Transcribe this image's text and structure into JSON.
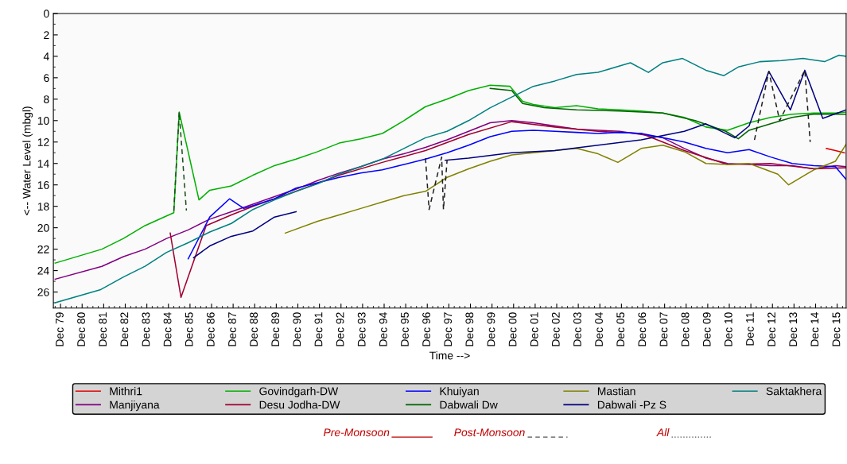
{
  "chart_data": {
    "type": "line",
    "xlabel": "Time -->",
    "ylabel": "<-- Water Level (mbgl)",
    "xlim": [
      "1979-08",
      "2016-05"
    ],
    "ylim": [
      27.5,
      0
    ],
    "yticks": [
      0,
      2,
      4,
      6,
      8,
      10,
      12,
      14,
      16,
      18,
      20,
      22,
      24,
      26
    ],
    "xticks": [
      {
        "value": "1979-12",
        "label": "Dec 79"
      },
      {
        "value": "1980-12",
        "label": "Dec 80"
      },
      {
        "value": "1981-12",
        "label": "Dec 81"
      },
      {
        "value": "1982-12",
        "label": "Dec 82"
      },
      {
        "value": "1983-12",
        "label": "Dec 83"
      },
      {
        "value": "1984-12",
        "label": "Dec 84"
      },
      {
        "value": "1985-12",
        "label": "Dec 85"
      },
      {
        "value": "1986-12",
        "label": "Dec 86"
      },
      {
        "value": "1987-12",
        "label": "Dec 87"
      },
      {
        "value": "1988-12",
        "label": "Dec 88"
      },
      {
        "value": "1989-12",
        "label": "Dec 89"
      },
      {
        "value": "1990-12",
        "label": "Dec 90"
      },
      {
        "value": "1991-12",
        "label": "Dec 91"
      },
      {
        "value": "1992-12",
        "label": "Dec 92"
      },
      {
        "value": "1993-12",
        "label": "Dec 93"
      },
      {
        "value": "1994-12",
        "label": "Dec 94"
      },
      {
        "value": "1995-12",
        "label": "Dec 95"
      },
      {
        "value": "1996-12",
        "label": "Dec 96"
      },
      {
        "value": "1997-12",
        "label": "Dec 97"
      },
      {
        "value": "1998-12",
        "label": "Dec 98"
      },
      {
        "value": "1999-12",
        "label": "Dec 99"
      },
      {
        "value": "2000-12",
        "label": "Dec 00"
      },
      {
        "value": "2001-12",
        "label": "Dec 01"
      },
      {
        "value": "2002-12",
        "label": "Dec 02"
      },
      {
        "value": "2003-12",
        "label": "Dec 03"
      },
      {
        "value": "2004-12",
        "label": "Dec 04"
      },
      {
        "value": "2005-12",
        "label": "Dec 05"
      },
      {
        "value": "2006-12",
        "label": "Dec 06"
      },
      {
        "value": "2007-12",
        "label": "Dec 07"
      },
      {
        "value": "2008-12",
        "label": "Dec 08"
      },
      {
        "value": "2009-12",
        "label": "Dec 09"
      },
      {
        "value": "2010-12",
        "label": "Dec 10"
      },
      {
        "value": "2011-12",
        "label": "Dec 11"
      },
      {
        "value": "2012-12",
        "label": "Dec 12"
      },
      {
        "value": "2013-12",
        "label": "Dec 13"
      },
      {
        "value": "2014-12",
        "label": "Dec 14"
      },
      {
        "value": "2015-12",
        "label": "Dec 15"
      }
    ],
    "grid": false,
    "legend": "bottom",
    "marker": "none",
    "series": [
      {
        "name": "Mithri1",
        "color": "#e00000",
        "x": [
          "2015-06",
          "2015-11",
          "2016-04"
        ],
        "values": [
          12.6,
          12.8,
          13.0
        ]
      },
      {
        "name": "Manjiyana",
        "color": "#800080",
        "x": [
          "1979-09",
          "1981-11",
          "1982-11",
          "1983-11",
          "1984-11",
          "1985-11",
          "1986-11",
          "1987-11",
          "1988-11",
          "1989-11",
          "1990-11",
          "1991-11",
          "1992-11",
          "1993-11",
          "1994-11",
          "1995-11",
          "1996-11",
          "1997-11",
          "1998-11",
          "1999-11",
          "2000-11",
          "2001-11",
          "2002-11",
          "2003-11",
          "2004-11",
          "2005-11",
          "2006-11",
          "2007-11",
          "2008-11",
          "2009-11",
          "2010-11",
          "2011-11",
          "2012-11",
          "2013-11",
          "2014-11",
          "2015-11",
          "2016-05"
        ],
        "values": [
          24.8,
          23.6,
          22.7,
          22.0,
          21.0,
          20.2,
          19.2,
          18.5,
          17.8,
          17.1,
          16.4,
          15.6,
          14.9,
          14.3,
          13.6,
          13.1,
          12.5,
          11.8,
          11.0,
          10.2,
          10.0,
          10.2,
          10.5,
          10.8,
          10.9,
          11.0,
          11.3,
          11.6,
          12.6,
          13.5,
          14.0,
          14.1,
          14.2,
          14.2,
          14.5,
          14.2,
          14.3
        ]
      },
      {
        "name": "Govindgarh-DW",
        "color": "#00b000",
        "x": [
          "1979-09",
          "1981-11",
          "1982-11",
          "1983-11",
          "1984-11",
          "1985-03",
          "1985-06",
          "1986-05",
          "1986-11",
          "1987-11",
          "1988-11",
          "1989-11",
          "1990-11",
          "1991-11",
          "1992-11",
          "1993-11",
          "1994-11",
          "1995-11",
          "1996-11",
          "1997-11",
          "1998-11",
          "1999-11",
          "2000-10",
          "2001-05",
          "2001-11",
          "2002-11",
          "2003-11",
          "2004-11",
          "2005-11",
          "2006-11",
          "2007-11",
          "2008-11",
          "2009-11",
          "2010-11",
          "2011-11",
          "2012-11",
          "2013-11",
          "2014-11",
          "2015-11",
          "2016-05"
        ],
        "values": [
          23.3,
          22.0,
          21.0,
          19.8,
          18.9,
          18.6,
          9.2,
          17.4,
          16.5,
          16.1,
          15.1,
          14.2,
          13.6,
          12.9,
          12.1,
          11.7,
          11.2,
          10.0,
          8.7,
          8.0,
          7.2,
          6.7,
          6.8,
          8.2,
          8.5,
          8.8,
          8.6,
          8.9,
          9.0,
          9.1,
          9.3,
          9.7,
          10.6,
          10.9,
          10.2,
          9.7,
          9.4,
          9.3,
          9.3,
          9.2
        ]
      },
      {
        "name": "Desu Jodha-DW",
        "color": "#a00030",
        "x": [
          "1985-01",
          "1985-07",
          "1986-09",
          "1987-11",
          "1988-11",
          "1990-11",
          "1992-11",
          "1994-11",
          "1996-11",
          "1998-11",
          "2000-11",
          "2002-11",
          "2004-11",
          "2006-11",
          "2008-11",
          "2010-11",
          "2012-11",
          "2014-11",
          "2016-05"
        ],
        "values": [
          20.5,
          26.5,
          19.8,
          18.8,
          18.0,
          16.6,
          15.1,
          13.9,
          12.8,
          11.3,
          10.1,
          10.6,
          11.0,
          11.2,
          12.8,
          14.1,
          14.0,
          14.5,
          14.4
        ]
      },
      {
        "name": "Khuiyan",
        "color": "#0000ff",
        "x": [
          "1985-11",
          "1986-11",
          "1987-10",
          "1988-06",
          "1989-11",
          "1990-11",
          "1991-11",
          "1992-11",
          "1993-11",
          "1994-11",
          "1995-11",
          "1996-11",
          "1997-11",
          "1998-11",
          "1999-11",
          "2000-11",
          "2001-11",
          "2002-11",
          "2003-11",
          "2004-11",
          "2005-11",
          "2006-11",
          "2007-11",
          "2008-11",
          "2009-11",
          "2010-11",
          "2011-11",
          "2012-11",
          "2013-11",
          "2014-11",
          "2015-11",
          "2016-05"
        ],
        "values": [
          22.9,
          19.0,
          17.3,
          18.2,
          17.3,
          16.3,
          15.8,
          15.3,
          14.9,
          14.6,
          14.1,
          13.6,
          13.0,
          12.3,
          11.5,
          11.0,
          10.9,
          11.0,
          11.1,
          11.2,
          11.1,
          11.2,
          11.6,
          12.0,
          12.6,
          13.0,
          12.7,
          13.4,
          14.0,
          14.2,
          14.3,
          15.5
        ]
      },
      {
        "name": "Dabwali Dw",
        "color": "#006400",
        "x": [
          "1999-11",
          "2000-11",
          "2001-05",
          "2002-05",
          "2003-11",
          "2005-11",
          "2007-11",
          "2009-05",
          "2010-10",
          "2011-05",
          "2011-11",
          "2012-11",
          "2013-11",
          "2014-11",
          "2016-05"
        ],
        "values": [
          7.0,
          7.2,
          8.4,
          8.8,
          9.0,
          9.1,
          9.3,
          10.0,
          11.0,
          11.7,
          10.9,
          10.3,
          9.7,
          9.4,
          9.4
        ]
      },
      {
        "name": "Mastian",
        "color": "#808000",
        "x": [
          "1990-05",
          "1991-11",
          "1992-11",
          "1993-11",
          "1994-11",
          "1995-11",
          "1996-11",
          "1997-11",
          "1998-11",
          "1999-11",
          "2000-11",
          "2001-11",
          "2002-11",
          "2003-11",
          "2004-11",
          "2005-10",
          "2006-11",
          "2007-11",
          "2008-11",
          "2009-11",
          "2010-11",
          "2011-11",
          "2013-03",
          "2013-09",
          "2014-11",
          "2015-11",
          "2016-05"
        ],
        "values": [
          20.5,
          19.4,
          18.8,
          18.2,
          17.6,
          17.0,
          16.6,
          15.3,
          14.5,
          13.8,
          13.2,
          13.0,
          12.8,
          12.6,
          13.1,
          13.9,
          12.6,
          12.3,
          12.9,
          14.0,
          14.1,
          14.0,
          15.0,
          16.0,
          14.6,
          13.8,
          12.2
        ]
      },
      {
        "name": "Dabwali -Pz S",
        "color": "#000080",
        "x": [
          "1986-02",
          "1986-11",
          "1987-11",
          "1988-11",
          "1989-11",
          "1990-11",
          "1993-11",
          "1997-10",
          "1998-11",
          "2000-11",
          "2002-11",
          "2004-11",
          "2006-11",
          "2008-11",
          "2009-11",
          "2011-03",
          "2011-11",
          "2012-10",
          "2013-10",
          "2014-06",
          "2015-04",
          "2016-05"
        ],
        "values": [
          22.8,
          21.7,
          20.8,
          20.3,
          19.0,
          18.5,
          null,
          13.7,
          13.5,
          13.0,
          12.8,
          12.3,
          11.8,
          11.0,
          10.3,
          11.6,
          10.5,
          5.4,
          9.0,
          5.3,
          9.8,
          9.0
        ]
      },
      {
        "name": "Saktakhera",
        "color": "#008080",
        "x": [
          "1979-09",
          "1981-10",
          "1982-11",
          "1983-11",
          "1984-11",
          "1985-11",
          "1986-11",
          "1987-11",
          "1988-11",
          "1989-11",
          "1990-11",
          "1991-11",
          "1992-11",
          "1993-11",
          "1994-11",
          "1995-11",
          "1996-11",
          "1997-11",
          "1998-11",
          "1999-11",
          "2000-11",
          "2001-11",
          "2002-11",
          "2003-11",
          "2004-11",
          "2005-11",
          "2006-05",
          "2007-03",
          "2007-11",
          "2008-10",
          "2009-11",
          "2010-09",
          "2011-05",
          "2012-05",
          "2013-05",
          "2014-05",
          "2015-05",
          "2016-01",
          "2016-05"
        ],
        "values": [
          27.0,
          25.8,
          24.6,
          23.6,
          22.3,
          21.4,
          20.4,
          19.6,
          18.3,
          17.4,
          16.6,
          15.9,
          15.0,
          14.3,
          13.6,
          12.6,
          11.6,
          11.0,
          10.0,
          8.8,
          7.8,
          6.8,
          6.3,
          5.7,
          5.5,
          4.9,
          4.6,
          5.5,
          4.6,
          4.2,
          5.3,
          5.8,
          5.0,
          4.5,
          4.4,
          4.2,
          4.5,
          3.9,
          4.0
        ]
      },
      {
        "color": "#1a4d1a",
        "line_style": "dashed",
        "x": [
          "1985-03",
          "1985-06",
          "1985-10"
        ],
        "values": [
          18.4,
          9.2,
          18.4
        ]
      },
      {
        "color": "#202020",
        "line_style": "dashed",
        "x": [
          "1996-11",
          "1997-01",
          "1997-08",
          "1997-09",
          "1997-11"
        ],
        "values": [
          13.5,
          18.3,
          13.4,
          18.3,
          13.7
        ]
      },
      {
        "color": "#202020",
        "line_style": "dashed",
        "x": [
          "2012-02",
          "2012-10",
          "2013-04",
          "2014-06",
          "2014-09"
        ],
        "values": [
          11.8,
          5.4,
          10.0,
          5.3,
          12.0
        ]
      }
    ],
    "annotations": [
      "Pre-Monsoon",
      "Post-Monsoon",
      "All"
    ]
  }
}
